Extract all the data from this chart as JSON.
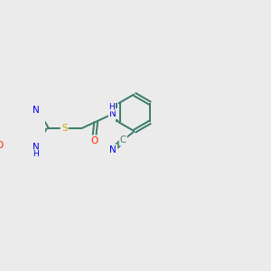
{
  "background_color": "#ebebeb",
  "bond_color": "#3a7a6a",
  "atom_colors": {
    "N": "#0000ee",
    "O": "#ff2200",
    "S": "#ccaa00",
    "C": "#3a7a6a",
    "H": "#3a7a6a"
  },
  "figsize": [
    3.0,
    3.0
  ],
  "dpi": 100,
  "lw": 1.4
}
